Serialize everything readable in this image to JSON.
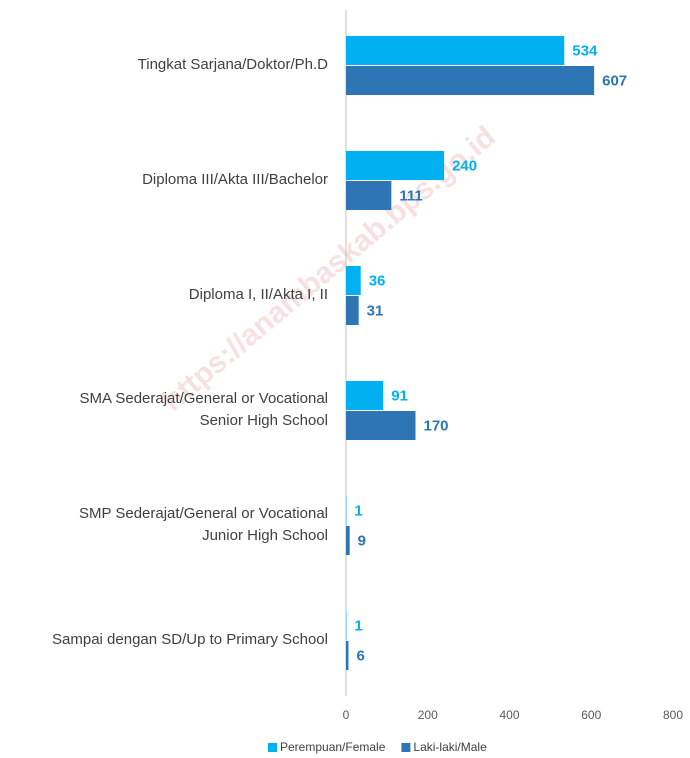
{
  "chart_data": {
    "type": "bar",
    "orientation": "horizontal",
    "categories": [
      "Tingkat Sarjana/Doktor/Ph.D",
      "Diploma III/Akta III/Bachelor",
      "Diploma I, II/Akta I, II",
      "SMA Sederajat/General or Vocational\nSenior High School",
      "SMP Sederajat/General or Vocational\nJunior High School",
      "Sampai dengan SD/Up to Primary School"
    ],
    "series": [
      {
        "name": "Perempuan/Female",
        "color": "#00b0f0",
        "values": [
          534,
          240,
          36,
          91,
          1,
          1
        ]
      },
      {
        "name": "Laki-laki/Male",
        "color": "#2e75b6",
        "values": [
          607,
          111,
          31,
          170,
          9,
          6
        ]
      }
    ],
    "xlim": [
      0,
      800
    ],
    "xticks": [
      0,
      200,
      400,
      600,
      800
    ],
    "legend": "bottom",
    "grid": false,
    "watermark": "https://anambaskab.bps.go.id"
  }
}
